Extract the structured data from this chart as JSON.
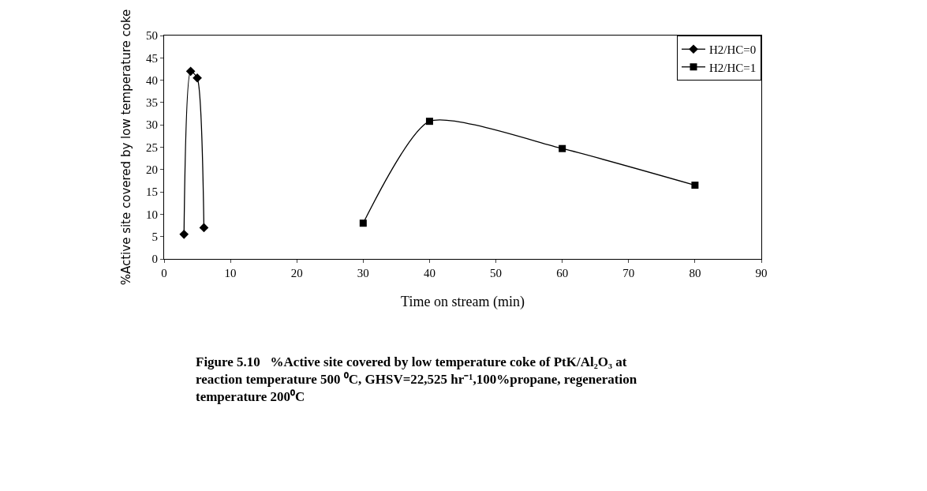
{
  "chart_data": {
    "type": "line",
    "xlabel": "Time on stream (min)",
    "ylabel": "%Active site covered by low temperature coke",
    "xlim": [
      0,
      90
    ],
    "xticks": [
      0,
      10,
      20,
      30,
      40,
      50,
      60,
      70,
      80,
      90
    ],
    "ylim": [
      0,
      50
    ],
    "yticks": [
      0,
      5,
      10,
      15,
      20,
      25,
      30,
      35,
      40,
      45,
      50
    ],
    "grid": false,
    "legend": "top right",
    "series": [
      {
        "name": "H2/HC=0",
        "color": "#000000",
        "marker": "diamond",
        "x": [
          3,
          4,
          5,
          6
        ],
        "values": [
          5.5,
          42,
          40.5,
          7
        ]
      },
      {
        "name": "H2/HC=1",
        "color": "#000000",
        "marker": "square",
        "x": [
          30,
          40,
          60,
          80
        ],
        "values": [
          8,
          30.8,
          24.7,
          16.5
        ]
      }
    ],
    "annotations": [
      "Figure 5.10   %Active site covered by low temperature coke of PtK/Al₂O₃ at reaction temperature 500 ⁰C, GHSV=22,525 hr⁻¹,100%propane, regeneration temperature 200⁰C"
    ]
  }
}
